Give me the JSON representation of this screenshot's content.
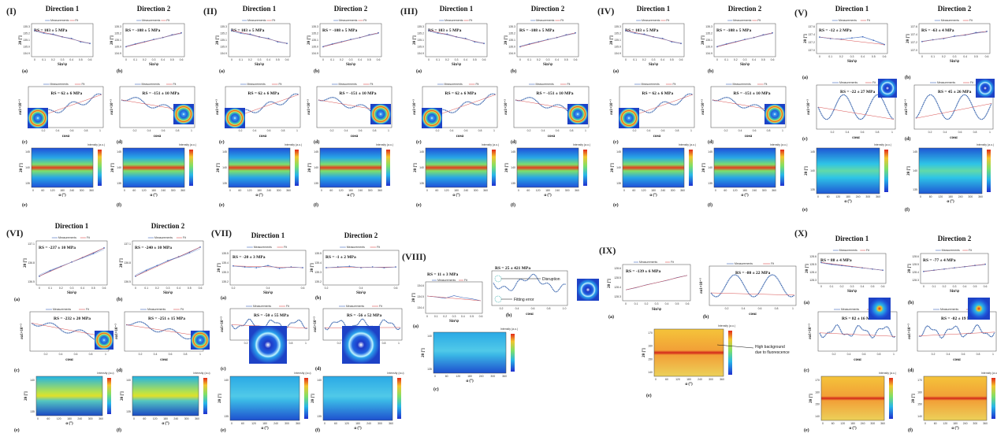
{
  "figure": {
    "legend_meas": "Measurements",
    "legend_fit": "Fit",
    "label_a": "(a)",
    "label_b": "(b)",
    "label_c": "(c)",
    "label_d": "(d)",
    "label_e": "(e)",
    "label_f": "(f)",
    "x_sin": "Sin²ψ",
    "x_cos": "cosα",
    "x_alpha": "α (°)",
    "y_2theta": "2θ [°]",
    "y_eps": "εα1×10⁻³",
    "intensity": "Intensity (a.u.)",
    "intensity_short": "Intensity (a.u)",
    "dir1": "Direction 1",
    "dir2": "Direction 2",
    "anno_disruption": "Disruption",
    "anno_fitting": "Fitting error",
    "anno_background": "High background due to fluorescence"
  },
  "colors": {
    "meas": "#3a62b8",
    "fit": "#d94f4f",
    "scatter": "#2b5aa8"
  },
  "chart_data": [
    {
      "id": "I",
      "label": "(I)",
      "type": "line",
      "rs_top1": "RS = 103 ± 5 MPa",
      "rs_top2": "RS = -108 ± 5 MPa",
      "rs_c": "RS = 62 ± 6 MPa",
      "rs_d": "RS = -151 ± 10 MPa",
      "yticks": [
        "135.3",
        "135.2",
        "135.1",
        "135.0",
        "134.9"
      ],
      "xticks": [
        "0",
        "0.1",
        "0.2",
        "0.3",
        "0.4",
        "0.5",
        "0.6"
      ],
      "cos_xticks": [
        "0.2",
        "0.4",
        "0.6",
        "0.8",
        "1"
      ],
      "alpha_xticks": [
        "0",
        "60",
        "120",
        "180",
        "240",
        "300",
        "360"
      ],
      "tt_yticks": [
        "145",
        "140",
        "135"
      ],
      "d1": [
        0.8,
        0.72,
        0.68,
        0.6,
        0.55,
        0.45,
        0.4
      ],
      "d2": [
        0.3,
        0.38,
        0.45,
        0.52,
        0.58,
        0.66,
        0.72
      ]
    },
    {
      "id": "II",
      "label": "(II)",
      "type": "line",
      "rs_top1": "RS = 103 ± 5 MPa",
      "rs_top2": "RS = -108 ± 5 MPa",
      "rs_c": "RS = 62 ± 6 MPa",
      "rs_d": "RS = -151 ± 10 MPa",
      "yticks": [
        "135.3",
        "135.2",
        "135.1",
        "135.0",
        "134.9"
      ],
      "xticks": [
        "0",
        "0.1",
        "0.2",
        "0.3",
        "0.4",
        "0.5",
        "0.6"
      ],
      "cos_xticks": [
        "0.2",
        "0.4",
        "0.6",
        "0.8",
        "1"
      ],
      "alpha_xticks": [
        "0",
        "60",
        "120",
        "180",
        "240",
        "300",
        "360"
      ],
      "tt_yticks": [
        "145",
        "140",
        "135"
      ],
      "d1": [
        0.8,
        0.72,
        0.68,
        0.6,
        0.55,
        0.45,
        0.4
      ],
      "d2": [
        0.3,
        0.38,
        0.45,
        0.52,
        0.58,
        0.66,
        0.72
      ]
    },
    {
      "id": "III",
      "label": "(III)",
      "type": "line",
      "rs_top1": "RS = 103 ± 5 MPa",
      "rs_top2": "RS = -108 ± 5 MPa",
      "rs_c": "RS = 62 ± 6 MPa",
      "rs_d": "RS = -151 ± 10 MPa",
      "yticks": [
        "135.3",
        "135.2",
        "135.1",
        "135.0",
        "134.9"
      ],
      "xticks": [
        "0",
        "0.1",
        "0.2",
        "0.3",
        "0.4",
        "0.5",
        "0.6"
      ],
      "cos_xticks": [
        "0.2",
        "0.4",
        "0.6",
        "0.8",
        "1"
      ],
      "alpha_xticks": [
        "0",
        "60",
        "120",
        "180",
        "240",
        "300",
        "360"
      ],
      "tt_yticks": [
        "145",
        "140",
        "135"
      ],
      "d1": [
        0.8,
        0.72,
        0.68,
        0.6,
        0.55,
        0.45,
        0.4
      ],
      "d2": [
        0.3,
        0.38,
        0.45,
        0.52,
        0.58,
        0.66,
        0.72
      ]
    },
    {
      "id": "IV",
      "label": "(IV)",
      "type": "line",
      "rs_top1": "RS = 103 ± 5 MPa",
      "rs_top2": "RS = -108 ± 5 MPa",
      "rs_c": "RS = 62 ± 6 MPa",
      "rs_d": "RS = -151 ± 10 MPa",
      "yticks": [
        "135.3",
        "135.2",
        "135.1",
        "135.0",
        "134.9"
      ],
      "xticks": [
        "0",
        "0.1",
        "0.2",
        "0.3",
        "0.4",
        "0.5",
        "0.6"
      ],
      "cos_xticks": [
        "0.2",
        "0.4",
        "0.6",
        "0.8",
        "1"
      ],
      "alpha_xticks": [
        "0",
        "60",
        "120",
        "180",
        "240",
        "300",
        "360"
      ],
      "tt_yticks": [
        "145",
        "140",
        "135"
      ],
      "d1": [
        0.8,
        0.72,
        0.68,
        0.6,
        0.55,
        0.45,
        0.4
      ],
      "d2": [
        0.3,
        0.38,
        0.45,
        0.52,
        0.58,
        0.66,
        0.72
      ]
    },
    {
      "id": "V",
      "label": "(V)",
      "type": "line",
      "rs_top1": "RS = -12 ± 2 MPa",
      "rs_top2": "RS = -63 ± 4 MPa",
      "rs_c": "RS = -22 ± 27 MPa",
      "rs_d": "RS = 45 ± 26 MPa",
      "yticks": [
        "137.6",
        "137.4",
        "137.2",
        "137.0"
      ],
      "xticks": [
        "0",
        "0.1",
        "0.2",
        "0.3",
        "0.4",
        "0.5",
        "0.6"
      ],
      "cos_xticks": [
        "0.2",
        "0.4",
        "0.6",
        "0.8",
        "1"
      ],
      "alpha_xticks": [
        "0",
        "60",
        "120",
        "180",
        "240",
        "300",
        "360"
      ],
      "tt_yticks": [
        "145",
        "140",
        "135"
      ],
      "d1": [
        0.55,
        0.5,
        0.48,
        0.52,
        0.56,
        0.44,
        0.3
      ],
      "d2": [
        0.4,
        0.46,
        0.5,
        0.58,
        0.62,
        0.7,
        0.74
      ]
    },
    {
      "id": "VI",
      "label": "(VI)",
      "type": "line",
      "rs_top1": "RS = -237 ± 10 MPa",
      "rs_top2": "RS = -240 ± 10 MPa",
      "rs_c": "RS = -232 ± 20 MPa",
      "rs_d": "RS = -251 ± 15 MPa",
      "yticks": [
        "137.1",
        "136.8",
        "136.5"
      ],
      "xticks": [
        "0",
        "0.1",
        "0.2",
        "0.3",
        "0.4",
        "0.5",
        "0.6"
      ],
      "cos_xticks": [
        "0.2",
        "0.4",
        "0.6",
        "0.8",
        "1"
      ],
      "alpha_xticks": [
        "0",
        "60",
        "120",
        "180",
        "240",
        "300",
        "360"
      ],
      "tt_yticks": [
        "140",
        "135"
      ],
      "d1": [
        0.2,
        0.32,
        0.42,
        0.52,
        0.62,
        0.72,
        0.84
      ],
      "d2": [
        0.2,
        0.33,
        0.44,
        0.55,
        0.64,
        0.74,
        0.86
      ]
    },
    {
      "id": "VII",
      "label": "(VII)",
      "type": "line",
      "rs_top1": "RS = -20 ± 3 MPa",
      "rs_top2": "RS = -1 ± 2 MPa",
      "rs_c": "RS = -50 ± 55 MPa",
      "rs_d": "RS = -56 ± 52 MPa",
      "yticks": [
        "135.5",
        "135.4",
        "135.3",
        "135.2"
      ],
      "xticks": [
        "0.2",
        "0.4",
        "0.6"
      ],
      "cos_xticks": [
        "0.2",
        "0.4",
        "0.6",
        "0.8",
        "1"
      ],
      "alpha_xticks": [
        "0",
        "60",
        "120",
        "180",
        "240",
        "300",
        "360"
      ],
      "tt_yticks": [
        "140",
        "135"
      ],
      "d1": [
        0.55,
        0.52,
        0.5,
        0.56,
        0.48,
        0.52,
        0.5
      ],
      "d2": [
        0.5,
        0.52,
        0.54,
        0.5,
        0.52,
        0.5,
        0.52
      ]
    },
    {
      "id": "VIII",
      "label": "(VIII)",
      "type": "line",
      "rs_top1": "RS = 11 ± 3 MPa",
      "rs_c": "RS = 25 ± 421 MPa",
      "yticks": [
        "134.6",
        "134.5",
        "134.4"
      ],
      "xticks": [
        "0",
        "0.1",
        "0.2",
        "0.3",
        "0.4",
        "0.5",
        "0.6"
      ],
      "cos_xticks": [
        "0.2",
        "0.4",
        "0.6",
        "0.8",
        "1.0"
      ],
      "alpha_xticks": [
        "0",
        "60",
        "120",
        "180",
        "240",
        "300",
        "360"
      ],
      "tt_yticks": [
        "140",
        "135"
      ],
      "d1": [
        0.55,
        0.52,
        0.48,
        0.56,
        0.5,
        0.46,
        0.4
      ]
    },
    {
      "id": "IX",
      "label": "(IX)",
      "type": "line",
      "rs_top1": "RS = -139 ± 6 MPa",
      "rs_c": "RS = -80 ± 22 MPa",
      "yticks": [
        "128.6",
        "128.5",
        "128.4",
        "128.3"
      ],
      "xticks": [
        "0",
        "0.1",
        "0.2",
        "0.3",
        "0.4",
        "0.5",
        "0.6"
      ],
      "cos_xticks": [
        "0.2",
        "0.4",
        "0.6",
        "0.8",
        "1"
      ],
      "alpha_xticks": [
        "0",
        "60",
        "120",
        "180",
        "240",
        "300",
        "360"
      ],
      "tt_yticks": [
        "170",
        "160",
        "150",
        "140"
      ],
      "d1": [
        0.3,
        0.36,
        0.44,
        0.5,
        0.56,
        0.64,
        0.7
      ]
    },
    {
      "id": "X",
      "label": "(X)",
      "type": "line",
      "rs_top1": "RS = 88 ± 4 MPa",
      "rs_top2": "RS = -77 ± 4 MPa",
      "rs_c": "RS = 82 ± 16 MPa",
      "rs_d": "RS = -82 ± 19 MPa",
      "yticks": [
        "128.6",
        "128.5",
        "128.4",
        "128.3"
      ],
      "xticks": [
        "0",
        "0.1",
        "0.2",
        "0.3",
        "0.4",
        "0.5",
        "0.6"
      ],
      "cos_xticks": [
        "0.2",
        "0.4",
        "0.6",
        "0.8",
        "1"
      ],
      "alpha_xticks": [
        "0",
        "60",
        "120",
        "180",
        "240",
        "300",
        "360"
      ],
      "tt_yticks": [
        "170",
        "160",
        "150",
        "140"
      ],
      "d1": [
        0.7,
        0.64,
        0.6,
        0.56,
        0.52,
        0.48,
        0.44
      ],
      "d2": [
        0.4,
        0.44,
        0.48,
        0.52,
        0.56,
        0.6,
        0.64
      ]
    }
  ]
}
